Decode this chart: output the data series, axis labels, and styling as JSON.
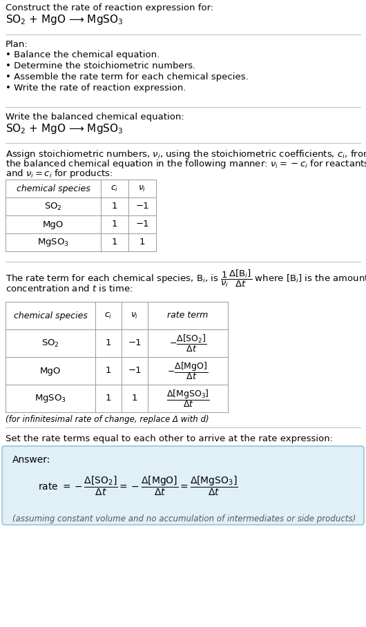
{
  "title_line1": "Construct the rate of reaction expression for:",
  "title_line2": "SO$_2$ + MgO ⟶ MgSO$_3$",
  "plan_header": "Plan:",
  "plan_items": [
    "• Balance the chemical equation.",
    "• Determine the stoichiometric numbers.",
    "• Assemble the rate term for each chemical species.",
    "• Write the rate of reaction expression."
  ],
  "section2_header": "Write the balanced chemical equation:",
  "section2_eq": "SO$_2$ + MgO ⟶ MgSO$_3$",
  "table1_headers": [
    "chemical species",
    "$c_i$",
    "$\\nu_i$"
  ],
  "table1_rows": [
    [
      "SO$_2$",
      "1",
      "−1"
    ],
    [
      "MgO",
      "1",
      "−1"
    ],
    [
      "MgSO$_3$",
      "1",
      "1"
    ]
  ],
  "table2_headers": [
    "chemical species",
    "$c_i$",
    "$\\nu_i$",
    "rate term"
  ],
  "table2_rows": [
    [
      "SO$_2$",
      "1",
      "−1",
      "$-\\dfrac{\\Delta[\\mathrm{SO_2}]}{\\Delta t}$"
    ],
    [
      "MgO",
      "1",
      "−1",
      "$-\\dfrac{\\Delta[\\mathrm{MgO}]}{\\Delta t}$"
    ],
    [
      "MgSO$_3$",
      "1",
      "1",
      "$\\dfrac{\\Delta[\\mathrm{MgSO_3}]}{\\Delta t}$"
    ]
  ],
  "infinitesimal_note": "(for infinitesimal rate of change, replace Δ with d)",
  "section5_header": "Set the rate terms equal to each other to arrive at the rate expression:",
  "answer_label": "Answer:",
  "answer_eq": "rate $= -\\dfrac{\\Delta[\\mathrm{SO_2}]}{\\Delta t} = -\\dfrac{\\Delta[\\mathrm{MgO}]}{\\Delta t} = \\dfrac{\\Delta[\\mathrm{MgSO_3}]}{\\Delta t}$",
  "answer_note": "(assuming constant volume and no accumulation of intermediates or side products)",
  "answer_bg": "#dff0f7",
  "bg_color": "#ffffff",
  "text_color": "#000000",
  "line_color": "#bbbbbb",
  "table_line_color": "#999999"
}
